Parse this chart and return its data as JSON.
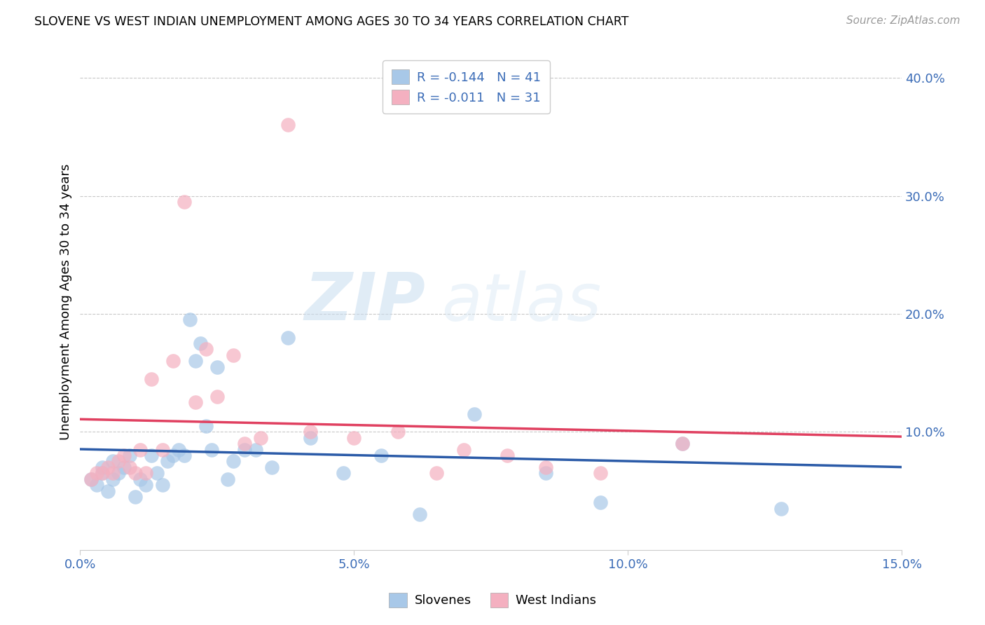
{
  "title": "SLOVENE VS WEST INDIAN UNEMPLOYMENT AMONG AGES 30 TO 34 YEARS CORRELATION CHART",
  "source": "Source: ZipAtlas.com",
  "ylabel": "Unemployment Among Ages 30 to 34 years",
  "x_min": 0.0,
  "x_max": 0.15,
  "y_min": 0.0,
  "y_max": 0.42,
  "x_ticks": [
    0.0,
    0.05,
    0.1,
    0.15
  ],
  "x_tick_labels": [
    "0.0%",
    "5.0%",
    "10.0%",
    "15.0%"
  ],
  "y_ticks_right": [
    0.1,
    0.2,
    0.3,
    0.4
  ],
  "y_tick_labels_right": [
    "10.0%",
    "20.0%",
    "30.0%",
    "40.0%"
  ],
  "slovene_color": "#a8c8e8",
  "west_indian_color": "#f4b0c0",
  "slovene_line_color": "#2b5ba8",
  "west_indian_line_color": "#e04060",
  "slovene_R": -0.144,
  "slovene_N": 41,
  "west_indian_R": -0.011,
  "west_indian_N": 31,
  "legend_label_slovene": "Slovenes",
  "legend_label_west_indian": "West Indians",
  "watermark_zip": "ZIP",
  "watermark_atlas": "atlas",
  "slovene_x": [
    0.002,
    0.003,
    0.004,
    0.004,
    0.005,
    0.006,
    0.006,
    0.007,
    0.008,
    0.009,
    0.01,
    0.011,
    0.012,
    0.013,
    0.014,
    0.015,
    0.016,
    0.017,
    0.018,
    0.019,
    0.02,
    0.021,
    0.022,
    0.023,
    0.024,
    0.025,
    0.027,
    0.028,
    0.03,
    0.032,
    0.035,
    0.038,
    0.042,
    0.048,
    0.055,
    0.062,
    0.072,
    0.085,
    0.095,
    0.11,
    0.128
  ],
  "slovene_y": [
    0.06,
    0.055,
    0.065,
    0.07,
    0.05,
    0.06,
    0.075,
    0.065,
    0.07,
    0.08,
    0.045,
    0.06,
    0.055,
    0.08,
    0.065,
    0.055,
    0.075,
    0.08,
    0.085,
    0.08,
    0.195,
    0.16,
    0.175,
    0.105,
    0.085,
    0.155,
    0.06,
    0.075,
    0.085,
    0.085,
    0.07,
    0.18,
    0.095,
    0.065,
    0.08,
    0.03,
    0.115,
    0.065,
    0.04,
    0.09,
    0.035
  ],
  "west_indian_x": [
    0.002,
    0.003,
    0.004,
    0.005,
    0.006,
    0.007,
    0.008,
    0.009,
    0.01,
    0.011,
    0.012,
    0.013,
    0.015,
    0.017,
    0.019,
    0.021,
    0.023,
    0.025,
    0.028,
    0.03,
    0.033,
    0.038,
    0.042,
    0.05,
    0.058,
    0.065,
    0.07,
    0.078,
    0.085,
    0.095,
    0.11
  ],
  "west_indian_y": [
    0.06,
    0.065,
    0.065,
    0.07,
    0.065,
    0.075,
    0.08,
    0.07,
    0.065,
    0.085,
    0.065,
    0.145,
    0.085,
    0.16,
    0.295,
    0.125,
    0.17,
    0.13,
    0.165,
    0.09,
    0.095,
    0.36,
    0.1,
    0.095,
    0.1,
    0.065,
    0.085,
    0.08,
    0.07,
    0.065,
    0.09
  ]
}
